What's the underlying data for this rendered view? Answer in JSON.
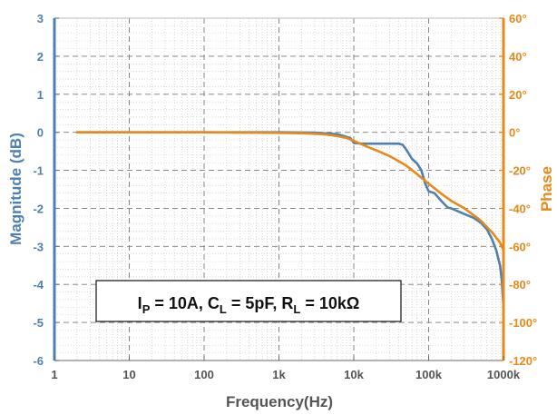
{
  "chart_data": {
    "type": "line",
    "xlabel": "Frequency(Hz)",
    "ylabel": "Magnitude (dB)",
    "y2label": "Phase",
    "x_scale": "log",
    "xlim": [
      1,
      1000000
    ],
    "ylim": [
      -6,
      3
    ],
    "y2lim": [
      -120,
      60
    ],
    "grid": true,
    "x_ticks": [
      {
        "value": 1,
        "label": "1"
      },
      {
        "value": 10,
        "label": "10"
      },
      {
        "value": 100,
        "label": "100"
      },
      {
        "value": 1000,
        "label": "1k"
      },
      {
        "value": 10000,
        "label": "10k"
      },
      {
        "value": 100000,
        "label": "100k"
      },
      {
        "value": 1000000,
        "label": "1000k"
      }
    ],
    "y_ticks": [
      {
        "value": 3,
        "label": "3"
      },
      {
        "value": 2,
        "label": "2"
      },
      {
        "value": 1,
        "label": "1"
      },
      {
        "value": 0,
        "label": "0"
      },
      {
        "value": -1,
        "label": "-1"
      },
      {
        "value": -2,
        "label": "-2"
      },
      {
        "value": -3,
        "label": "-3"
      },
      {
        "value": -4,
        "label": "-4"
      },
      {
        "value": -5,
        "label": "-5"
      },
      {
        "value": -6,
        "label": "-6"
      }
    ],
    "y2_ticks": [
      {
        "value": 60,
        "label": "60°"
      },
      {
        "value": 40,
        "label": "40°"
      },
      {
        "value": 20,
        "label": "20°"
      },
      {
        "value": 0,
        "label": "0°"
      },
      {
        "value": -20,
        "label": "-20°"
      },
      {
        "value": -40,
        "label": "-40°"
      },
      {
        "value": -60,
        "label": "-60°"
      },
      {
        "value": -80,
        "label": "-80°"
      },
      {
        "value": -100,
        "label": "-100°"
      },
      {
        "value": -120,
        "label": "-120°"
      }
    ],
    "annotation": {
      "parts": [
        {
          "text": "I"
        },
        {
          "text": "P",
          "sub": true
        },
        {
          "text": " = 10A, C"
        },
        {
          "text": "L",
          "sub": true
        },
        {
          "text": " = 5pF, R"
        },
        {
          "text": "L",
          "sub": true
        },
        {
          "text": " = 10kΩ"
        }
      ]
    },
    "series": [
      {
        "axis": "left",
        "color": "#4f81b0",
        "x": [
          2,
          10,
          100,
          1000,
          3000,
          6000,
          9000,
          10000,
          13000,
          20000,
          30000,
          40000,
          45000,
          50000,
          60000,
          70000,
          80000,
          90000,
          100000,
          120000,
          150000,
          180000,
          200000,
          300000,
          400000,
          500000,
          600000,
          700000,
          800000,
          900000,
          950000,
          1000000
        ],
        "y": [
          0,
          0,
          0,
          0,
          -0.01,
          -0.05,
          -0.15,
          -0.28,
          -0.3,
          -0.3,
          -0.3,
          -0.3,
          -0.33,
          -0.45,
          -0.7,
          -0.82,
          -1.0,
          -1.35,
          -1.55,
          -1.6,
          -1.82,
          -1.98,
          -2.0,
          -2.15,
          -2.25,
          -2.38,
          -2.55,
          -2.8,
          -3.1,
          -3.5,
          -3.9,
          -4.6
        ]
      },
      {
        "axis": "right",
        "color": "#e8891a",
        "x": [
          2,
          10,
          100,
          1000,
          2000,
          4000,
          6000,
          8000,
          10000,
          15000,
          20000,
          30000,
          50000,
          70000,
          100000,
          150000,
          200000,
          300000,
          500000,
          700000,
          900000,
          1000000
        ],
        "y": [
          0,
          0,
          0,
          -0.3,
          -0.5,
          -1.0,
          -2.0,
          -3.0,
          -4.5,
          -7.5,
          -9.5,
          -12.5,
          -17.5,
          -22.0,
          -27.0,
          -32.5,
          -36.0,
          -40.0,
          -46.5,
          -52.5,
          -58.0,
          -62.0
        ]
      }
    ],
    "colors": {
      "left_axis": "#4f81b0",
      "right_axis": "#e8891a",
      "grid": "#7a7a7a",
      "minor_grid": "#c8c8c8"
    }
  }
}
